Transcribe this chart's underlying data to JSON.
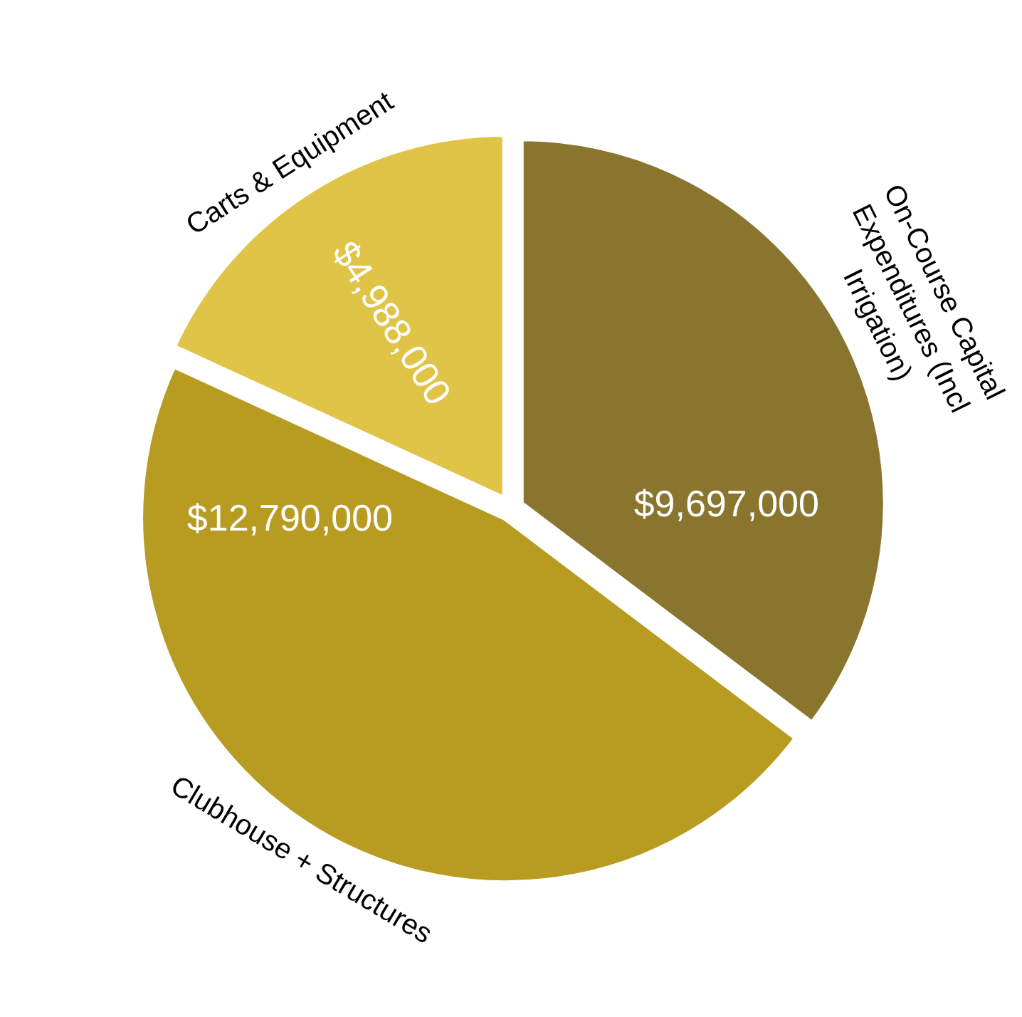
{
  "chart_data": {
    "type": "pie",
    "categories": [
      "On-Course Capital Expenditures (Incl Irrigation)",
      "Clubhouse + Structures",
      "Carts & Equipment"
    ],
    "values": [
      9697000,
      12790000,
      4988000
    ],
    "value_labels": [
      "$9,697,000",
      "$12,790,000",
      "$4,988,000"
    ],
    "colors": [
      "#8a752f",
      "#b89c22",
      "#e0c447"
    ],
    "legend": false
  }
}
